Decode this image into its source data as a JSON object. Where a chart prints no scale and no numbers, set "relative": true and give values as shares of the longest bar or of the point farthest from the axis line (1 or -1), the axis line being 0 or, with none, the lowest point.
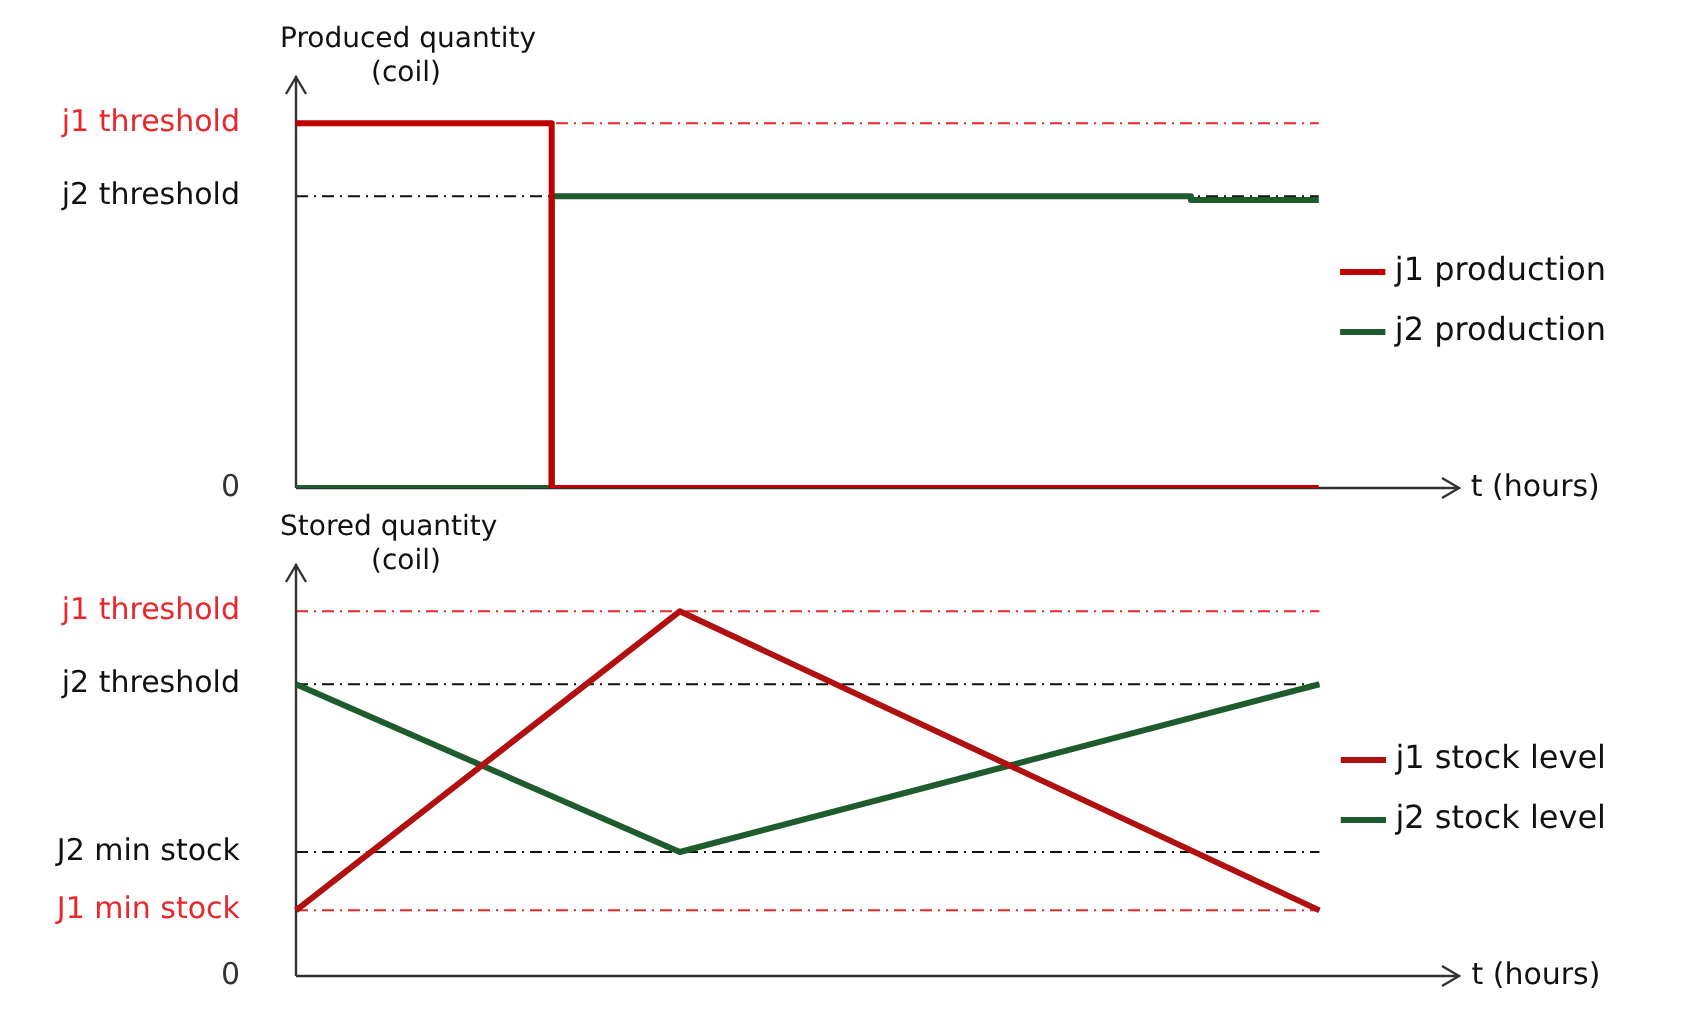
{
  "chart_data": [
    {
      "type": "step",
      "relative": true,
      "xlabel": "t (hours)",
      "ylabel": "Produced quantity\n(coil)",
      "legend": "right",
      "categories": [
        null,
        null,
        null,
        null,
        null,
        null,
        null,
        null,
        null
      ],
      "series": [
        {
          "name": "j1 production",
          "color": "#c00000",
          "values": [
            1,
            1,
            1,
            0,
            0,
            0,
            0,
            0,
            0
          ]
        },
        {
          "name": "j2 production",
          "color": "#1e5c2e",
          "values": [
            0,
            0,
            0,
            0.8,
            0.8,
            0.8,
            0.8,
            0.8,
            0.79
          ]
        }
      ],
      "ref_lines": [
        {
          "axis": "y",
          "value": 1,
          "label": "j1 threshold",
          "color": "#e8262b"
        },
        {
          "axis": "y",
          "value": 0.8,
          "label": "j2 threshold",
          "color": "#111111"
        },
        {
          "axis": "y",
          "value": 0,
          "label": "0",
          "color": "#333333"
        }
      ]
    },
    {
      "type": "line",
      "relative": true,
      "xlabel": "t (hours)",
      "ylabel": "Stored quantity\n(coil)",
      "legend": "right",
      "categories": [
        null,
        null,
        null,
        null,
        null,
        null,
        null,
        null,
        null
      ],
      "series": [
        {
          "name": "j1 stock level",
          "color": "#b01010",
          "values": [
            0.18,
            null,
            null,
            1,
            null,
            null,
            null,
            null,
            0.18
          ]
        },
        {
          "name": "j2 stock level",
          "color": "#1e5c2e",
          "values": [
            0.8,
            null,
            null,
            0.34,
            null,
            null,
            null,
            null,
            0.8
          ]
        }
      ],
      "ref_lines": [
        {
          "axis": "y",
          "value": 1,
          "label": "j1 threshold",
          "color": "#e8262b"
        },
        {
          "axis": "y",
          "value": 0.8,
          "label": "j2 threshold",
          "color": "#111111"
        },
        {
          "axis": "y",
          "value": 0.34,
          "label": "J2 min stock",
          "color": "#111111"
        },
        {
          "axis": "y",
          "value": 0.18,
          "label": "J1 min stock",
          "color": "#e8262b"
        },
        {
          "axis": "y",
          "value": 0,
          "label": "0",
          "color": "#333333"
        }
      ]
    }
  ]
}
